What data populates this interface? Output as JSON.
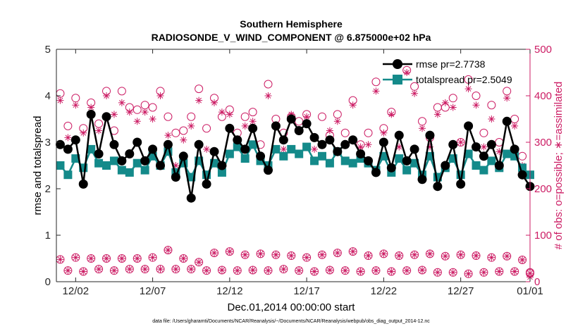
{
  "chart_data": {
    "type": "line",
    "title_line1": "Southern Hemisphere",
    "title_line2": "RADIOSONDE_V_WIND_COMPONENT @ 6.875000e+02 hPa",
    "xlabel": "Dec.01,2014 00:00:00 start",
    "ylabel_left": "rmse and totalspread",
    "ylabel_right": "# of obs: o=possible; ∗=assimilated",
    "footnote": "data file: /Users/gharamti/Documents/NCAR/Reanalysis/~/Documents/NCAR/Reanalysis/webpub/obs_diag_output_2014-12.nc",
    "xlim": [
      0.25,
      31.0
    ],
    "ylim_left": [
      0,
      5
    ],
    "ylim_right": [
      0,
      500
    ],
    "xticks": [
      1.5,
      6.5,
      11.5,
      16.5,
      21.5,
      26.5,
      31.0
    ],
    "xtick_labels": [
      "12/02",
      "12/07",
      "12/12",
      "12/17",
      "12/22",
      "12/27",
      "01/01"
    ],
    "yticks_left": [
      0,
      1,
      2,
      3,
      4,
      5
    ],
    "yticks_left_labels": [
      "0",
      "1",
      "2",
      "3",
      "4",
      "5"
    ],
    "yticks_right": [
      0,
      100,
      200,
      300,
      400,
      500
    ],
    "yticks_right_labels": [
      "0",
      "100",
      "200",
      "300",
      "400",
      "500"
    ],
    "colors": {
      "rmse": "#000000",
      "totalspread": "#148a8a",
      "obs": "#cc1c64",
      "axis": "#262626"
    },
    "legend": [
      {
        "name": "rmse pr=2.7738",
        "color": "#000000",
        "marker": "circle"
      },
      {
        "name": "totalspread pr=2.5049",
        "color": "#148a8a",
        "marker": "square"
      }
    ],
    "rmse": {
      "x": [
        0.5,
        1.0,
        1.5,
        2.0,
        2.5,
        3.0,
        3.5,
        4.0,
        4.5,
        5.0,
        5.5,
        6.0,
        6.5,
        7.0,
        7.5,
        8.0,
        8.5,
        9.0,
        9.5,
        10.0,
        10.5,
        11.0,
        11.5,
        12.0,
        12.5,
        13.0,
        13.5,
        14.0,
        14.5,
        15.0,
        15.5,
        16.0,
        16.5,
        17.0,
        17.5,
        18.0,
        18.5,
        19.0,
        19.5,
        20.0,
        20.5,
        21.0,
        21.5,
        22.0,
        22.5,
        23.0,
        23.5,
        24.0,
        24.5,
        25.0,
        25.5,
        26.0,
        26.5,
        27.0,
        27.5,
        28.0,
        28.5,
        29.0,
        29.5,
        30.0,
        30.5,
        31.0
      ],
      "values": [
        2.95,
        2.85,
        3.05,
        2.1,
        3.6,
        2.75,
        3.55,
        2.95,
        2.6,
        2.75,
        3.0,
        2.6,
        2.85,
        2.5,
        2.95,
        2.25,
        2.7,
        1.8,
        2.95,
        2.1,
        2.8,
        2.5,
        3.3,
        3.05,
        2.85,
        3.3,
        2.7,
        2.4,
        3.35,
        3.05,
        3.5,
        3.25,
        3.4,
        3.1,
        2.95,
        3.05,
        2.8,
        2.95,
        3.05,
        2.75,
        2.6,
        2.35,
        3.0,
        2.45,
        3.15,
        2.6,
        2.85,
        2.2,
        3.15,
        2.05,
        2.5,
        2.95,
        2.1,
        3.35,
        2.9,
        2.7,
        2.95,
        2.5,
        3.45,
        2.85,
        2.3,
        2.05
      ]
    },
    "totalspread": {
      "x": [
        0.5,
        1.0,
        1.5,
        2.0,
        2.5,
        3.0,
        3.5,
        4.0,
        4.5,
        5.0,
        5.5,
        6.0,
        6.5,
        7.0,
        7.5,
        8.0,
        8.5,
        9.0,
        9.5,
        10.0,
        10.5,
        11.0,
        11.5,
        12.0,
        12.5,
        13.0,
        13.5,
        14.0,
        14.5,
        15.0,
        15.5,
        16.0,
        16.5,
        17.0,
        17.5,
        18.0,
        18.5,
        19.0,
        19.5,
        20.0,
        20.5,
        21.0,
        21.5,
        22.0,
        22.5,
        23.0,
        23.5,
        24.0,
        24.5,
        25.0,
        25.5,
        26.0,
        26.5,
        27.0,
        27.5,
        28.0,
        28.5,
        29.0,
        29.5,
        30.0,
        30.5,
        31.0
      ],
      "values": [
        2.5,
        2.3,
        2.65,
        2.45,
        2.85,
        2.55,
        2.5,
        2.6,
        2.4,
        2.35,
        2.55,
        2.4,
        2.7,
        2.5,
        2.8,
        2.35,
        2.55,
        2.25,
        2.6,
        2.3,
        2.55,
        2.35,
        2.75,
        2.9,
        2.65,
        2.95,
        2.6,
        2.5,
        2.85,
        2.7,
        2.85,
        2.75,
        2.9,
        2.6,
        2.7,
        2.55,
        2.8,
        2.6,
        2.55,
        2.65,
        2.55,
        2.4,
        2.7,
        2.35,
        2.65,
        2.4,
        2.55,
        2.3,
        2.7,
        2.25,
        2.45,
        2.65,
        2.3,
        2.75,
        2.5,
        2.4,
        2.6,
        2.45,
        2.75,
        2.7,
        2.45,
        2.3
      ]
    },
    "obs_possible": {
      "x": [
        0.5,
        1.0,
        1.5,
        2.0,
        2.5,
        3.0,
        3.5,
        4.0,
        4.5,
        5.0,
        5.5,
        6.0,
        6.5,
        7.0,
        7.5,
        8.0,
        8.5,
        9.0,
        9.5,
        10.0,
        10.5,
        11.0,
        11.5,
        12.0,
        12.5,
        13.0,
        13.5,
        14.0,
        14.5,
        15.0,
        15.5,
        16.0,
        16.5,
        17.0,
        17.5,
        18.0,
        18.5,
        19.0,
        19.5,
        20.0,
        20.5,
        21.0,
        21.5,
        22.0,
        22.5,
        23.0,
        23.5,
        24.0,
        24.5,
        25.0,
        25.5,
        26.0,
        26.5,
        27.0,
        27.5,
        28.0,
        28.5,
        29.0,
        29.5,
        30.0,
        30.5,
        31.0
      ],
      "values": [
        405,
        335,
        395,
        330,
        385,
        340,
        410,
        325,
        410,
        375,
        370,
        380,
        375,
        410,
        355,
        320,
        325,
        355,
        415,
        330,
        395,
        355,
        370,
        320,
        355,
        365,
        295,
        425,
        350,
        320,
        355,
        345,
        360,
        310,
        355,
        315,
        360,
        320,
        390,
        295,
        320,
        430,
        330,
        365,
        315,
        455,
        420,
        345,
        310,
        375,
        375,
        395,
        300,
        435,
        400,
        320,
        380,
        300,
        410,
        350,
        270,
        20
      ]
    },
    "obs_assimilated": {
      "x": [
        0.5,
        1.0,
        1.5,
        2.0,
        2.5,
        3.0,
        3.5,
        4.0,
        4.5,
        5.0,
        5.5,
        6.0,
        6.5,
        7.0,
        7.5,
        8.0,
        8.5,
        9.0,
        9.5,
        10.0,
        10.5,
        11.0,
        11.5,
        12.0,
        12.5,
        13.0,
        13.5,
        14.0,
        14.5,
        15.0,
        15.5,
        16.0,
        16.5,
        17.0,
        17.5,
        18.0,
        18.5,
        19.0,
        19.5,
        20.0,
        20.5,
        21.0,
        21.5,
        22.0,
        22.5,
        23.0,
        23.5,
        24.0,
        24.5,
        25.0,
        25.5,
        26.0,
        26.5,
        27.0,
        27.5,
        28.0,
        28.5,
        29.0,
        29.5,
        30.0,
        30.5,
        31.0
      ],
      "values": [
        390,
        310,
        380,
        320,
        375,
        325,
        400,
        360,
        385,
        365,
        345,
        365,
        350,
        400,
        315,
        250,
        305,
        335,
        390,
        285,
        385,
        365,
        360,
        305,
        335,
        345,
        270,
        400,
        335,
        285,
        360,
        325,
        355,
        285,
        295,
        325,
        345,
        295,
        380,
        290,
        295,
        410,
        320,
        360,
        290,
        450,
        405,
        330,
        290,
        360,
        385,
        375,
        300,
        415,
        380,
        290,
        350,
        280,
        395,
        335,
        250,
        10
      ]
    },
    "obs_possible_low": {
      "x": [
        0.5,
        1.0,
        1.5,
        2.0,
        2.5,
        3.0,
        3.5,
        4.0,
        4.5,
        5.0,
        5.5,
        6.0,
        6.5,
        7.0,
        7.5,
        8.0,
        8.5,
        9.0,
        9.5,
        10.0,
        10.5,
        11.0,
        11.5,
        12.0,
        12.5,
        13.0,
        13.5,
        14.0,
        14.5,
        15.0,
        15.5,
        16.0,
        16.5,
        17.0,
        17.5,
        18.0,
        18.5,
        19.0,
        19.5,
        20.0,
        20.5,
        21.0,
        21.5,
        22.0,
        22.5,
        23.0,
        23.5,
        24.0,
        24.5,
        25.0,
        25.5,
        26.0,
        26.5,
        27.0,
        27.5,
        28.0,
        28.5,
        29.0,
        29.5,
        30.0,
        30.5,
        31.0
      ],
      "values": [
        48,
        24,
        52,
        22,
        50,
        27,
        50,
        24,
        50,
        27,
        50,
        27,
        52,
        27,
        68,
        27,
        50,
        27,
        42,
        24,
        62,
        25,
        65,
        24,
        58,
        25,
        60,
        24,
        58,
        27,
        56,
        24,
        52,
        22,
        58,
        25,
        62,
        24,
        65,
        22,
        56,
        24,
        60,
        22,
        56,
        24,
        58,
        25,
        60,
        20,
        55,
        20,
        58,
        17,
        56,
        20,
        52,
        22,
        55,
        22,
        47,
        18
      ]
    },
    "obs_assimilated_low": {
      "x": [
        0.5,
        1.0,
        1.5,
        2.0,
        2.5,
        3.0,
        3.5,
        4.0,
        4.5,
        5.0,
        5.5,
        6.0,
        6.5,
        7.0,
        7.5,
        8.0,
        8.5,
        9.0,
        9.5,
        10.0,
        10.5,
        11.0,
        11.5,
        12.0,
        12.5,
        13.0,
        13.5,
        14.0,
        14.5,
        15.0,
        15.5,
        16.0,
        16.5,
        17.0,
        17.5,
        18.0,
        18.5,
        19.0,
        19.5,
        20.0,
        20.5,
        21.0,
        21.5,
        22.0,
        22.5,
        23.0,
        23.5,
        24.0,
        24.5,
        25.0,
        25.5,
        26.0,
        26.5,
        27.0,
        27.5,
        28.0,
        28.5,
        29.0,
        29.5,
        30.0,
        30.5,
        31.0
      ],
      "values": [
        48,
        24,
        52,
        22,
        50,
        27,
        50,
        24,
        50,
        27,
        50,
        27,
        52,
        27,
        68,
        27,
        50,
        27,
        42,
        24,
        62,
        25,
        65,
        24,
        58,
        25,
        60,
        24,
        58,
        27,
        56,
        24,
        52,
        22,
        58,
        25,
        62,
        24,
        65,
        22,
        56,
        24,
        60,
        22,
        56,
        24,
        58,
        25,
        60,
        20,
        55,
        20,
        58,
        17,
        56,
        20,
        52,
        22,
        55,
        22,
        47,
        18
      ]
    }
  }
}
